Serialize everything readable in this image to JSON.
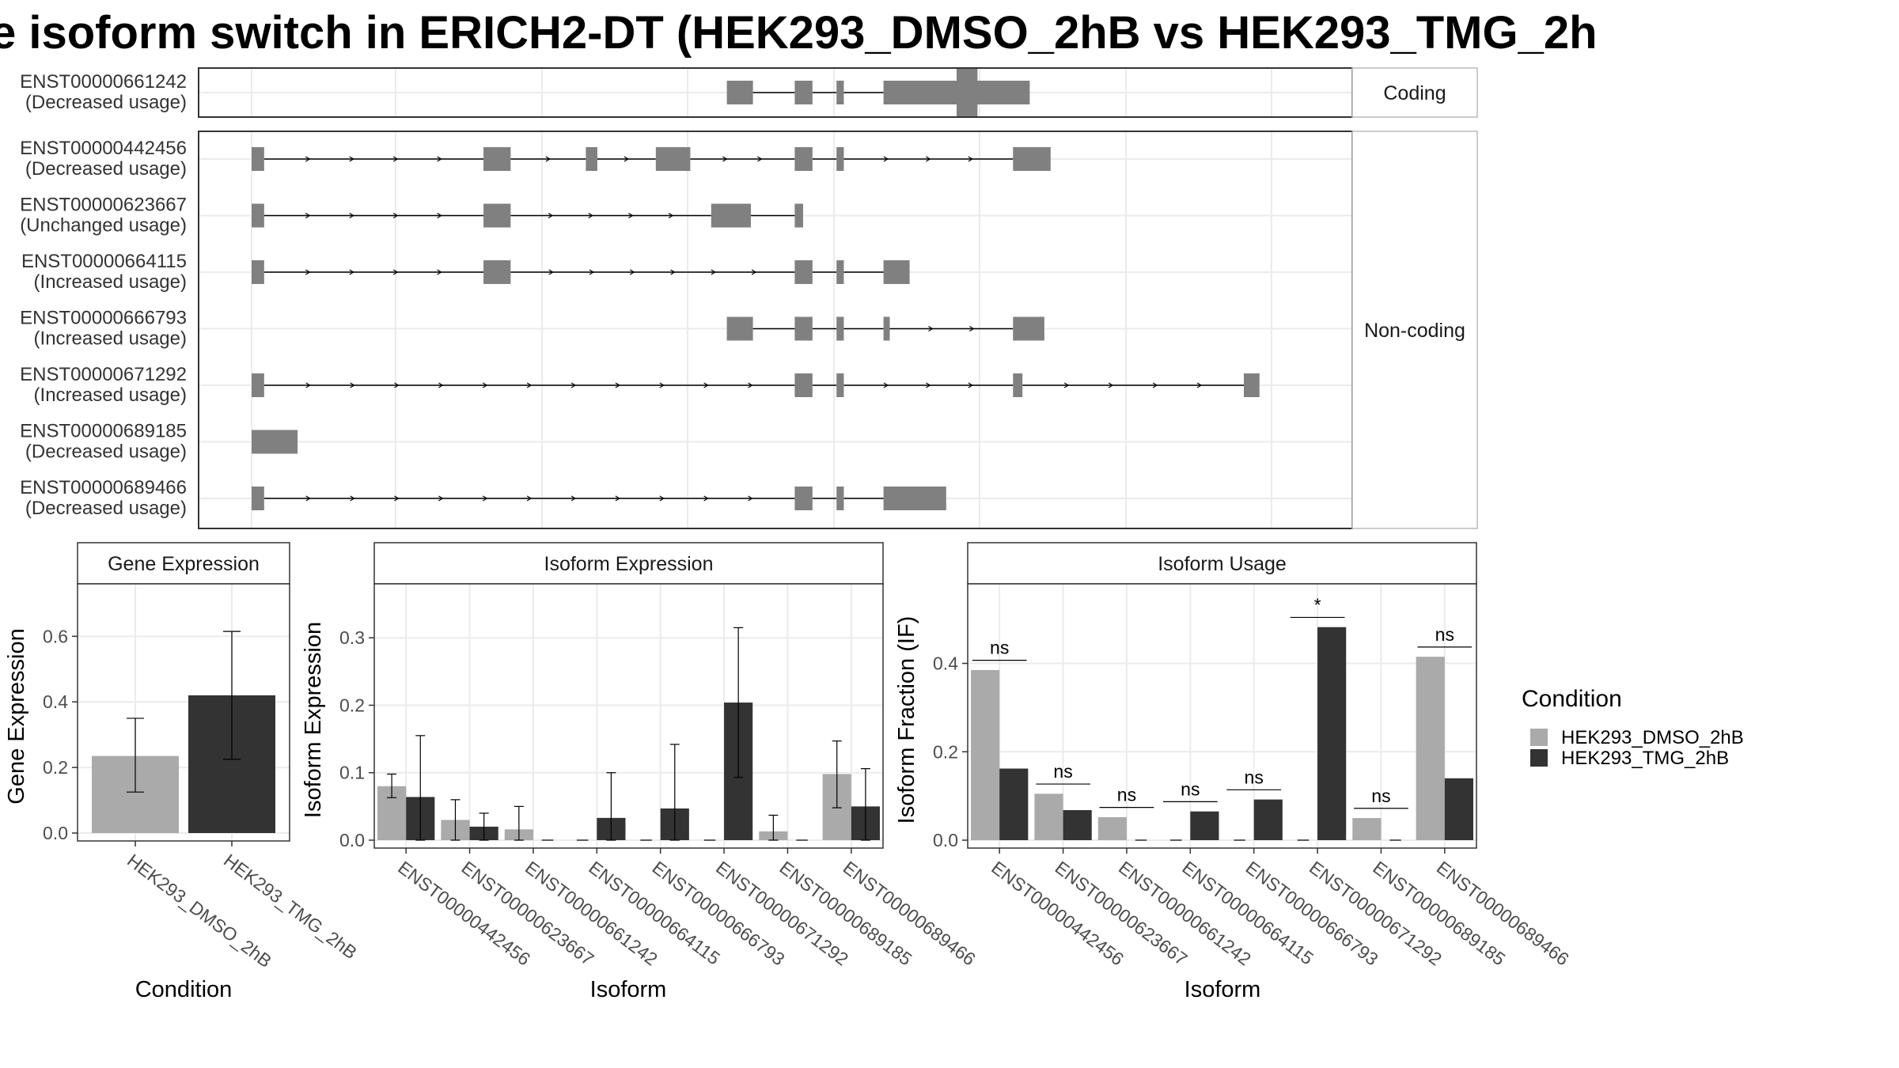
{
  "title": "e isoform switch in ERICH2-DT (HEK293_DMSO_2hB vs HEK293_TMG_2h",
  "colors": {
    "exon": "#808080",
    "dmso": "#aaaaaa",
    "tmg": "#333333",
    "grid": "#ebebeb",
    "strip_bg": "#ffffff"
  },
  "chart_data": [
    {
      "type": "gene_structure",
      "title": "",
      "panels": [
        {
          "label": "Coding",
          "transcripts": [
            "ENST00000661242"
          ]
        },
        {
          "label": "Non-coding",
          "transcripts": [
            "ENST00000442456",
            "ENST00000623667",
            "ENST00000664115",
            "ENST00000666793",
            "ENST00000671292",
            "ENST00000689185",
            "ENST00000689466"
          ]
        }
      ],
      "transcripts": [
        {
          "id": "ENST00000661242",
          "usage": "(Decreased usage)",
          "exons": [
            [
              0.455,
              0.48
            ],
            [
              0.52,
              0.537
            ],
            [
              0.56,
              0.567
            ],
            [
              0.605,
              0.745
            ]
          ],
          "cds": [
            0.675,
            0.695
          ]
        },
        {
          "id": "ENST00000442456",
          "usage": "(Decreased usage)",
          "exons": [
            [
              0.0,
              0.012
            ],
            [
              0.222,
              0.248
            ],
            [
              0.32,
              0.331
            ],
            [
              0.387,
              0.42
            ],
            [
              0.52,
              0.537
            ],
            [
              0.56,
              0.567
            ],
            [
              0.729,
              0.765
            ]
          ]
        },
        {
          "id": "ENST00000623667",
          "usage": "(Unchanged usage)",
          "exons": [
            [
              0.0,
              0.012
            ],
            [
              0.222,
              0.248
            ],
            [
              0.44,
              0.478
            ],
            [
              0.52,
              0.528
            ]
          ]
        },
        {
          "id": "ENST00000664115",
          "usage": "(Increased usage)",
          "exons": [
            [
              0.0,
              0.012
            ],
            [
              0.222,
              0.248
            ],
            [
              0.52,
              0.537
            ],
            [
              0.56,
              0.567
            ],
            [
              0.605,
              0.63
            ]
          ]
        },
        {
          "id": "ENST00000666793",
          "usage": "(Increased usage)",
          "exons": [
            [
              0.455,
              0.48
            ],
            [
              0.52,
              0.537
            ],
            [
              0.56,
              0.567
            ],
            [
              0.605,
              0.611
            ],
            [
              0.729,
              0.759
            ]
          ]
        },
        {
          "id": "ENST00000671292",
          "usage": "(Increased usage)",
          "exons": [
            [
              0.0,
              0.012
            ],
            [
              0.52,
              0.537
            ],
            [
              0.56,
              0.567
            ],
            [
              0.729,
              0.738
            ],
            [
              0.95,
              0.965
            ]
          ]
        },
        {
          "id": "ENST00000689185",
          "usage": "(Decreased usage)",
          "exons": [
            [
              0.0,
              0.044
            ]
          ]
        },
        {
          "id": "ENST00000689466",
          "usage": "(Decreased usage)",
          "exons": [
            [
              0.0,
              0.012
            ],
            [
              0.52,
              0.537
            ],
            [
              0.56,
              0.567
            ],
            [
              0.605,
              0.665
            ]
          ]
        }
      ]
    },
    {
      "type": "bar",
      "strip": "Gene Expression",
      "xlabel": "Condition",
      "ylabel": "Gene Expression",
      "ylim": [
        0,
        0.76
      ],
      "yticks": [
        "0.0",
        "0.2",
        "0.4",
        "0.6"
      ],
      "categories": [
        "HEK293_DMSO_2hB",
        "HEK293_TMG_2hB"
      ],
      "values": [
        0.235,
        0.42
      ],
      "err_low": [
        0.125,
        0.225
      ],
      "err_high": [
        0.35,
        0.615
      ]
    },
    {
      "type": "bar",
      "strip": "Isoform Expression",
      "xlabel": "Isoform",
      "ylabel": "Isoform Expression",
      "ylim": [
        0,
        0.38
      ],
      "yticks": [
        "0.0",
        "0.1",
        "0.2",
        "0.3"
      ],
      "categories": [
        "ENST00000442456",
        "ENST00000623667",
        "ENST00000661242",
        "ENST00000664115",
        "ENST00000666793",
        "ENST00000671292",
        "ENST00000689185",
        "ENST00000689466"
      ],
      "series": [
        {
          "name": "HEK293_DMSO_2hB",
          "values": [
            0.08,
            0.03,
            0.016,
            0,
            0,
            0,
            0.013,
            0.098
          ],
          "err_low": [
            0.063,
            0.0,
            0.0,
            0,
            0,
            0,
            0.0,
            0.048
          ],
          "err_high": [
            0.098,
            0.06,
            0.05,
            0,
            0,
            0,
            0.037,
            0.147
          ]
        },
        {
          "name": "HEK293_TMG_2hB",
          "values": [
            0.064,
            0.02,
            0,
            0.033,
            0.047,
            0.204,
            0,
            0.05
          ],
          "err_low": [
            0.0,
            0.0,
            0,
            0.0,
            0.0,
            0.093,
            0,
            0.0
          ],
          "err_high": [
            0.155,
            0.04,
            0,
            0.1,
            0.142,
            0.315,
            0,
            0.106
          ]
        }
      ]
    },
    {
      "type": "bar",
      "strip": "Isoform Usage",
      "xlabel": "Isoform",
      "ylabel": "Isoform Fraction (IF)",
      "ylim": [
        0,
        0.58
      ],
      "yticks": [
        "0.0",
        "0.2",
        "0.4"
      ],
      "categories": [
        "ENST00000442456",
        "ENST00000623667",
        "ENST00000661242",
        "ENST00000664115",
        "ENST00000666793",
        "ENST00000671292",
        "ENST00000689185",
        "ENST00000689466"
      ],
      "series": [
        {
          "name": "HEK293_DMSO_2hB",
          "values": [
            0.385,
            0.105,
            0.052,
            0,
            0,
            0,
            0.05,
            0.415
          ]
        },
        {
          "name": "HEK293_TMG_2hB",
          "values": [
            0.162,
            0.068,
            0,
            0.065,
            0.092,
            0.482,
            0,
            0.14
          ]
        }
      ],
      "significance": [
        "ns",
        "ns",
        "ns",
        "ns",
        "ns",
        "*",
        "ns",
        "ns"
      ],
      "sig_y": [
        0.407,
        0.127,
        0.074,
        0.087,
        0.114,
        0.504,
        0.072,
        0.437
      ]
    }
  ],
  "legend": {
    "title": "Condition",
    "items": [
      {
        "label": "HEK293_DMSO_2hB",
        "color": "#aaaaaa"
      },
      {
        "label": "HEK293_TMG_2hB",
        "color": "#333333"
      }
    ]
  }
}
